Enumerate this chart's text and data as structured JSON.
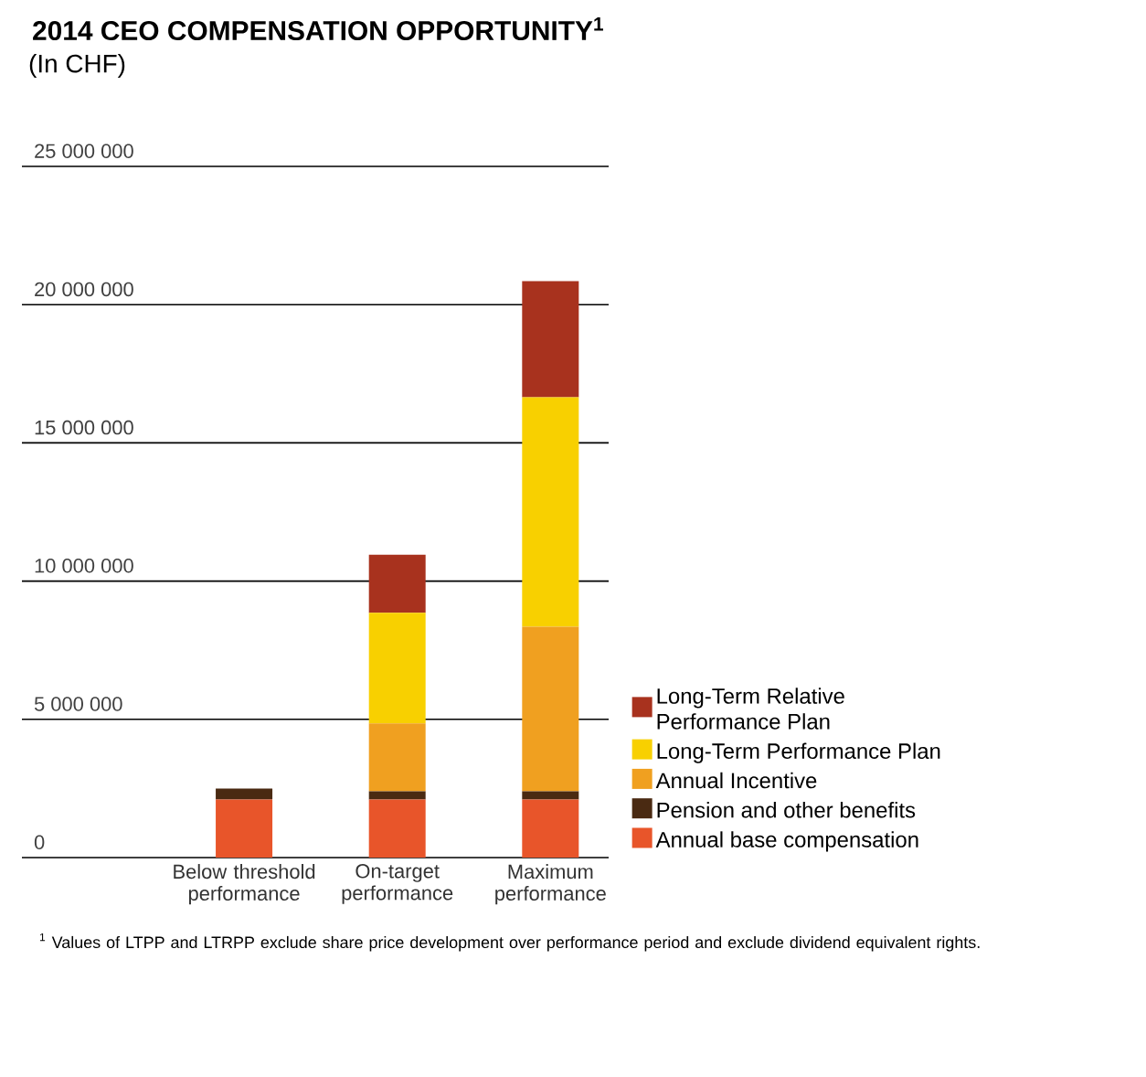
{
  "chart_data": {
    "type": "bar",
    "stacked": true,
    "title": "2014 CEO COMPENSATION OPPORTUNITY$^{1}$",
    "subtitle": "(In CHF)",
    "categories": [
      "Below threshold performance",
      "On-target performance",
      "Maximum performance"
    ],
    "series": [
      {
        "name": "Annual base compensation",
        "color": "#e8552a",
        "values": [
          2100000,
          2100000,
          2100000
        ]
      },
      {
        "name": "Pension and other benefits",
        "color": "#4a2a12",
        "values": [
          400000,
          300000,
          300000
        ]
      },
      {
        "name": "Annual Incentive",
        "color": "#f0a020",
        "values": [
          0,
          2450000,
          5950000
        ]
      },
      {
        "name": "Long-Term Performance Plan",
        "color": "#f8d000",
        "values": [
          0,
          4000000,
          8300000
        ]
      },
      {
        "name": "Long-Term Relative Performance Plan",
        "color": "#a8321e",
        "values": [
          0,
          2100000,
          4200000
        ]
      }
    ],
    "ylim": [
      0,
      25000000
    ],
    "yticks": [
      {
        "value": 0,
        "label": "0"
      },
      {
        "value": 5000000,
        "label": "5 000 000"
      },
      {
        "value": 10000000,
        "label": "10 000 000"
      },
      {
        "value": 15000000,
        "label": "15 000 000"
      },
      {
        "value": 20000000,
        "label": "20 000 000"
      },
      {
        "value": 25000000,
        "label": "25 000 000"
      }
    ],
    "grid": "y",
    "legend": "right",
    "annotations": [
      "$^{1}$ Values of LTPP and LTRPP exclude share price development over performance period and exclude dividend equivalent rights."
    ]
  }
}
